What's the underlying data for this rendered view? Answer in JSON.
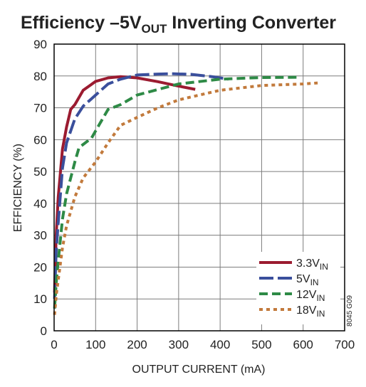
{
  "chart_data": {
    "type": "line",
    "title": "Efficiency –5V",
    "title_sub": "OUT",
    "title_rest": " Inverting Converter",
    "xlabel": "OUTPUT CURRENT (mA)",
    "ylabel": "EFFICIENCY (%)",
    "xlim": [
      0,
      700
    ],
    "ylim": [
      0,
      90
    ],
    "xticks": [
      0,
      100,
      200,
      300,
      400,
      500,
      600,
      700
    ],
    "yticks": [
      0,
      10,
      20,
      30,
      40,
      50,
      60,
      70,
      80,
      90
    ],
    "grid": true,
    "legend_position": "bottom-right",
    "note": "8045 G09",
    "series": [
      {
        "name": "3.3V",
        "name_sub": "IN",
        "color": "#9b1b30",
        "dash": "solid",
        "x": [
          1,
          5,
          10,
          20,
          30,
          40,
          50,
          70,
          100,
          130,
          160,
          200,
          250,
          300,
          340
        ],
        "y": [
          12,
          30,
          42,
          57,
          64,
          69.5,
          71,
          75.5,
          78.3,
          79.4,
          79.8,
          79.4,
          78.2,
          76.8,
          75.8
        ]
      },
      {
        "name": "5V",
        "name_sub": "IN",
        "color": "#3a4f9c",
        "dash": "longdash",
        "x": [
          1,
          5,
          10,
          20,
          30,
          50,
          70,
          100,
          130,
          160,
          200,
          250,
          280,
          330,
          380,
          420
        ],
        "y": [
          10,
          25,
          34,
          51,
          59,
          66.5,
          70.5,
          74,
          77.5,
          79,
          80.3,
          80.6,
          80.7,
          80.5,
          79.8,
          79
        ]
      },
      {
        "name": "12V",
        "name_sub": "IN",
        "color": "#2e8a46",
        "dash": "dash",
        "x": [
          1,
          5,
          10,
          20,
          30,
          50,
          60,
          90,
          110,
          130,
          160,
          200,
          300,
          400,
          500,
          590
        ],
        "y": [
          7,
          15,
          22,
          35,
          43,
          53,
          57.5,
          60.5,
          65,
          69.5,
          71,
          74,
          77.5,
          79,
          79.5,
          79.6
        ]
      },
      {
        "name": "18V",
        "name_sub": "IN",
        "color": "#c27a3c",
        "dash": "dot",
        "x": [
          1,
          5,
          10,
          20,
          30,
          50,
          70,
          100,
          130,
          160,
          200,
          250,
          300,
          400,
          500,
          600,
          635
        ],
        "y": [
          5,
          11,
          16,
          26,
          33,
          42,
          48,
          53,
          59,
          64.5,
          67,
          70,
          72.5,
          75.5,
          77,
          77.5,
          77.8
        ]
      }
    ]
  }
}
